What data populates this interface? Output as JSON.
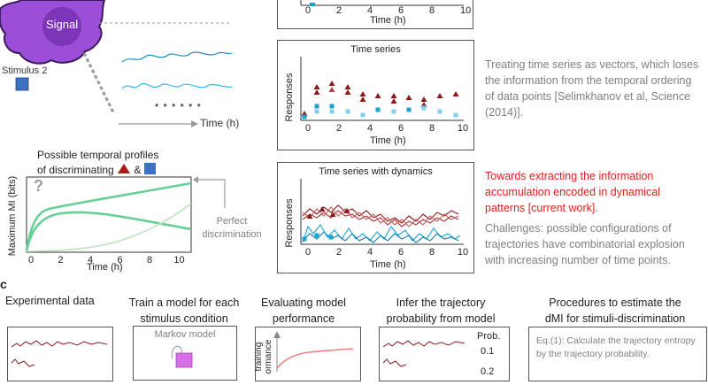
{
  "top_left": {
    "cell_label": "Signal",
    "stimulus2_label": "Stimulus 2",
    "dots": "• • •   • • •",
    "time_axis_label": "Time (h)"
  },
  "top_panel": {
    "ticks": [
      "0",
      "2",
      "4",
      "6",
      "8",
      "10"
    ],
    "xlabel": "Time (h)"
  },
  "mi_plot": {
    "title_line1": "Possible temporal profiles",
    "title_line2": "of discriminating",
    "amp": "&",
    "question": "?",
    "ylabel": "Maximum MI (bits)",
    "xlabel": "Time (h)",
    "ticks": [
      "0",
      "2",
      "4",
      "6",
      "8",
      "10"
    ],
    "perfect_line1": "Perfect",
    "perfect_line2": "discrimination"
  },
  "time_series_panel": {
    "title": "Time series",
    "ylabel": "Responses",
    "xlabel": "Time (h)",
    "ticks": [
      "0",
      "2",
      "4",
      "6",
      "8",
      "10"
    ],
    "description": "Treating time series as vectors, which loses the information from the temporal ordering of data points [Selimkhanov et al, Science (2014)]."
  },
  "dynamics_panel": {
    "title": "Time series with dynamics",
    "ylabel": "Responses",
    "xlabel": "Time (h)",
    "ticks": [
      "0",
      "2",
      "4",
      "6",
      "8",
      "10"
    ],
    "red_text": "Towards extracting the information accumulation encoded in dynamical patterns [current work].",
    "challenges": "Challenges: possible configurations of trajectories have combinatorial explosion with increasing number of time points."
  },
  "section_c": {
    "label": "c",
    "steps": [
      {
        "title": "Experimental data"
      },
      {
        "title_line1": "Train a model for each",
        "title_line2": "stimulus condition",
        "box_text": "Markov model"
      },
      {
        "title_line1": "Evaluating model",
        "title_line2": "performance",
        "axis_label": "training ormance"
      },
      {
        "title_line1": "Infer the trajectory",
        "title_line2": "probability from model",
        "prob_label": "Prob.",
        "prob_value": "0.1",
        "prob_value2": "0.2"
      },
      {
        "title_line1": "Procedures to estimate the",
        "title_line2": "dMI for stimuli-discrimination",
        "eq_line1": "Eq.(1): Calculate the trajectory entropy",
        "eq_line2": "by the trajectory probability."
      }
    ]
  },
  "colors": {
    "cell": "#9b4fd8",
    "stim_blue": "#3b72c4",
    "dark_red": "#8b1a1a",
    "cyan": "#1aa3d1",
    "green": "#5ccf8e",
    "red_text": "#e0201e"
  }
}
